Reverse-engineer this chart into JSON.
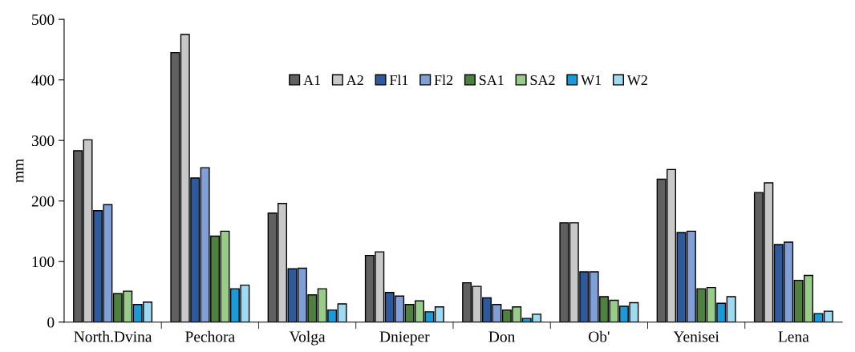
{
  "chart_data": {
    "type": "bar",
    "ylabel": "mm",
    "categories": [
      "North.Dvina",
      "Pechora",
      "Volga",
      "Dnieper",
      "Don",
      "Ob'",
      "Yenisei",
      "Lena"
    ],
    "series": [
      {
        "name": "A1",
        "color": "#606060",
        "values": [
          283,
          445,
          180,
          110,
          65,
          164,
          236,
          214
        ]
      },
      {
        "name": "A2",
        "color": "#c8c8c8",
        "values": [
          301,
          475,
          196,
          116,
          59,
          164,
          252,
          230
        ]
      },
      {
        "name": "Fl1",
        "color": "#2e5a9c",
        "values": [
          184,
          238,
          88,
          49,
          40,
          83,
          148,
          128
        ]
      },
      {
        "name": "Fl2",
        "color": "#7f9fd6",
        "values": [
          194,
          255,
          89,
          43,
          29,
          83,
          150,
          132
        ]
      },
      {
        "name": "SA1",
        "color": "#4e8040",
        "values": [
          47,
          142,
          45,
          29,
          20,
          42,
          55,
          69
        ]
      },
      {
        "name": "SA2",
        "color": "#99cc88",
        "values": [
          51,
          150,
          55,
          35,
          25,
          36,
          57,
          77
        ]
      },
      {
        "name": "W1",
        "color": "#1a9ad6",
        "values": [
          29,
          55,
          20,
          17,
          6,
          26,
          31,
          14
        ]
      },
      {
        "name": "W2",
        "color": "#9edbf0",
        "values": [
          33,
          61,
          30,
          25,
          13,
          32,
          42,
          18
        ]
      }
    ],
    "ylim": [
      0,
      500
    ],
    "yticks": [
      0,
      100,
      200,
      300,
      400,
      500
    ],
    "grid": false,
    "legend": "top"
  }
}
